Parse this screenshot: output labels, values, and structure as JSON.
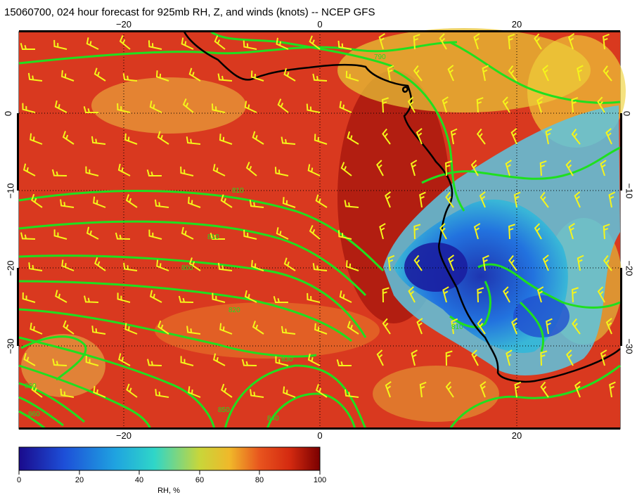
{
  "title": "15060700, 024 hour forecast for 925mb RH, Z, and winds (knots) -- NCEP GFS",
  "axes": {
    "x_ticks": [
      "−20",
      "0",
      "20"
    ],
    "y_ticks": [
      "0",
      "−10",
      "−20",
      "−30"
    ],
    "lon_range": [
      -30.5,
      30.5
    ],
    "lat_range": [
      10.5,
      -39.5
    ]
  },
  "colorbar": {
    "label": "RH, %",
    "ticks": [
      "0",
      "20",
      "40",
      "60",
      "80",
      "100"
    ],
    "range": [
      0,
      100
    ],
    "colors": [
      "#1a0a8c",
      "#1d4fd8",
      "#1fa3e0",
      "#2fd6c8",
      "#c8d63a",
      "#f0b82a",
      "#e8541e",
      "#d42a10",
      "#7a0000"
    ]
  },
  "contour_labels": [
    "790",
    "810",
    "810",
    "800",
    "820",
    "830",
    "840",
    "850",
    "860",
    "860",
    "810"
  ],
  "colors": {
    "coast": "#000000",
    "contours": "#1fe01f",
    "barbs": "#f5f51a",
    "grid": "#000000"
  }
}
